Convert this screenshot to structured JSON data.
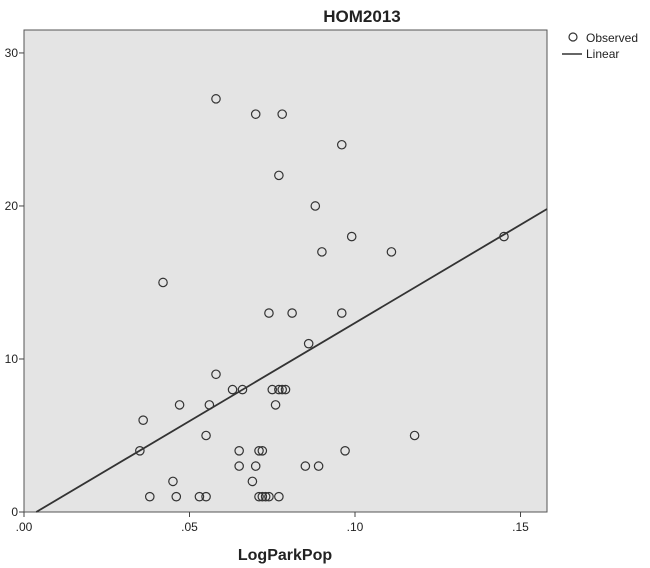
{
  "chart_data": {
    "type": "scatter",
    "title": "HOM2013",
    "xlabel": "LogParkPop",
    "ylabel": "",
    "xlim": [
      0.0,
      0.158
    ],
    "ylim": [
      0,
      31.5
    ],
    "x_ticks": [
      {
        "value": 0.0,
        "label": ".00"
      },
      {
        "value": 0.05,
        "label": ".05"
      },
      {
        "value": 0.1,
        "label": ".10"
      },
      {
        "value": 0.15,
        "label": ".15"
      }
    ],
    "y_ticks": [
      {
        "value": 0,
        "label": "0"
      },
      {
        "value": 10,
        "label": "10"
      },
      {
        "value": 20,
        "label": "20"
      },
      {
        "value": 30,
        "label": "30"
      }
    ],
    "grid": false,
    "legend_position": "top-right",
    "legend": [
      "Observed",
      "Linear"
    ],
    "colors": {
      "plot_background": "#e4e4e4",
      "marker": "#333333",
      "line": "#333333"
    },
    "series": [
      {
        "name": "Observed",
        "marker": "open-circle",
        "points": [
          [
            0.058,
            27
          ],
          [
            0.07,
            26
          ],
          [
            0.078,
            26
          ],
          [
            0.096,
            24
          ],
          [
            0.077,
            22
          ],
          [
            0.088,
            20
          ],
          [
            0.099,
            18
          ],
          [
            0.145,
            18
          ],
          [
            0.09,
            17
          ],
          [
            0.111,
            17
          ],
          [
            0.042,
            15
          ],
          [
            0.074,
            13
          ],
          [
            0.081,
            13
          ],
          [
            0.096,
            13
          ],
          [
            0.086,
            11
          ],
          [
            0.058,
            9
          ],
          [
            0.063,
            8
          ],
          [
            0.066,
            8
          ],
          [
            0.075,
            8
          ],
          [
            0.077,
            8
          ],
          [
            0.078,
            8
          ],
          [
            0.079,
            8
          ],
          [
            0.047,
            7
          ],
          [
            0.056,
            7
          ],
          [
            0.076,
            7
          ],
          [
            0.036,
            6
          ],
          [
            0.055,
            5
          ],
          [
            0.118,
            5
          ],
          [
            0.035,
            4
          ],
          [
            0.065,
            4
          ],
          [
            0.071,
            4
          ],
          [
            0.072,
            4
          ],
          [
            0.097,
            4
          ],
          [
            0.065,
            3
          ],
          [
            0.07,
            3
          ],
          [
            0.085,
            3
          ],
          [
            0.089,
            3
          ],
          [
            0.045,
            2
          ],
          [
            0.069,
            2
          ],
          [
            0.038,
            1
          ],
          [
            0.046,
            1
          ],
          [
            0.053,
            1
          ],
          [
            0.055,
            1
          ],
          [
            0.071,
            1
          ],
          [
            0.072,
            1
          ],
          [
            0.073,
            1
          ],
          [
            0.074,
            1
          ],
          [
            0.077,
            1
          ]
        ]
      },
      {
        "name": "Linear",
        "type": "line",
        "x": [
          0.0037,
          0.158
        ],
        "y": [
          0,
          19.8
        ]
      }
    ]
  }
}
